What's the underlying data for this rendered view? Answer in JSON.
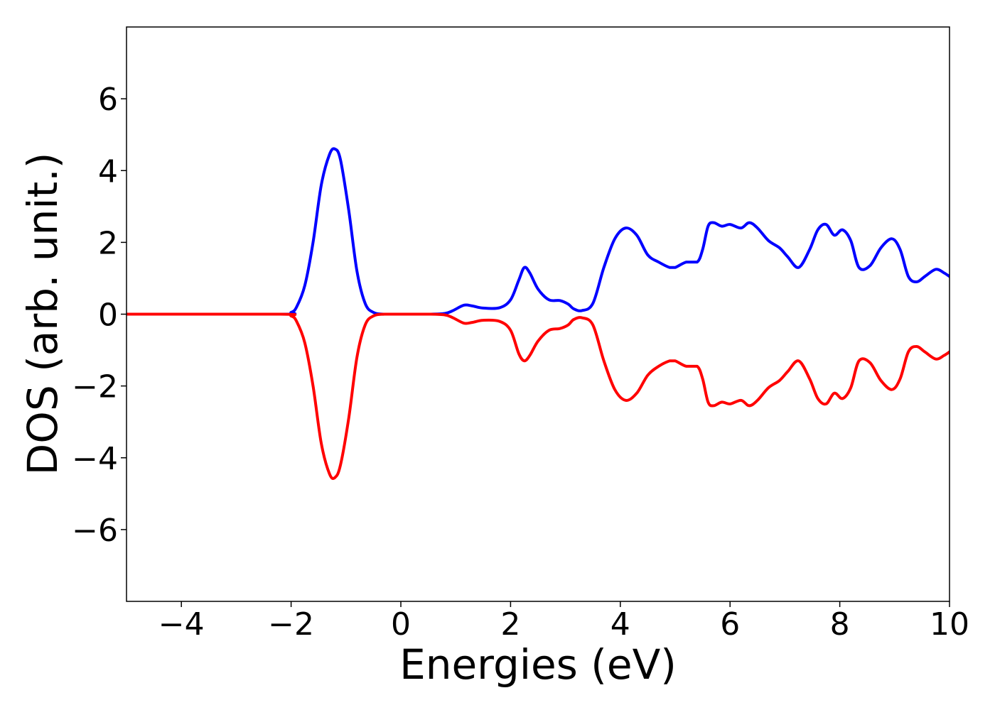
{
  "chart_data": {
    "type": "line",
    "title": "",
    "xlabel": "Energies (eV)",
    "ylabel": "DOS (arb. unit.)",
    "xlim": [
      -5,
      10
    ],
    "ylim": [
      -8,
      8
    ],
    "xticks": [
      -4,
      -2,
      0,
      2,
      4,
      6,
      8,
      10
    ],
    "xtick_labels": [
      "−4",
      "−2",
      "0",
      "2",
      "4",
      "6",
      "8",
      "10"
    ],
    "yticks": [
      -6,
      -4,
      -2,
      0,
      2,
      4,
      6
    ],
    "ytick_labels": [
      "−6",
      "−4",
      "−2",
      "0",
      "2",
      "4",
      "6"
    ],
    "grid": false,
    "legend": false,
    "series": [
      {
        "color": "#0000ff",
        "x": [
          -5,
          -2.2,
          -2.0,
          -1.9,
          -1.75,
          -1.6,
          -1.45,
          -1.3,
          -1.2,
          -1.1,
          -0.95,
          -0.8,
          -0.65,
          -0.5,
          -0.3,
          0.0,
          0.5,
          0.8,
          0.95,
          1.15,
          1.3,
          1.5,
          1.8,
          2.0,
          2.15,
          2.25,
          2.35,
          2.5,
          2.7,
          2.9,
          3.05,
          3.15,
          3.3,
          3.5,
          3.7,
          3.9,
          4.1,
          4.3,
          4.5,
          4.7,
          4.9,
          5.0,
          5.2,
          5.4,
          5.5,
          5.6,
          5.7,
          5.85,
          6.0,
          6.2,
          6.35,
          6.5,
          6.7,
          6.9,
          7.05,
          7.25,
          7.45,
          7.6,
          7.75,
          7.9,
          8.05,
          8.2,
          8.35,
          8.55,
          8.75,
          8.95,
          9.1,
          9.25,
          9.4,
          9.55,
          9.75,
          9.9,
          10.0
        ],
        "y": [
          0,
          0,
          0.05,
          0.2,
          0.8,
          2.0,
          3.6,
          4.45,
          4.6,
          4.3,
          2.9,
          1.2,
          0.3,
          0.05,
          0,
          0,
          0,
          0.02,
          0.1,
          0.25,
          0.23,
          0.17,
          0.18,
          0.4,
          0.95,
          1.3,
          1.15,
          0.7,
          0.4,
          0.38,
          0.28,
          0.15,
          0.1,
          0.3,
          1.3,
          2.1,
          2.4,
          2.2,
          1.65,
          1.45,
          1.3,
          1.3,
          1.45,
          1.45,
          1.8,
          2.45,
          2.55,
          2.45,
          2.5,
          2.4,
          2.55,
          2.4,
          2.05,
          1.85,
          1.6,
          1.3,
          1.8,
          2.35,
          2.5,
          2.2,
          2.35,
          2.05,
          1.3,
          1.35,
          1.85,
          2.1,
          1.8,
          1.05,
          0.9,
          1.05,
          1.25,
          1.15,
          1.05
        ]
      },
      {
        "color": "#ff0000",
        "x": [
          -5,
          -2.2,
          -2.0,
          -1.9,
          -1.75,
          -1.6,
          -1.45,
          -1.3,
          -1.2,
          -1.1,
          -0.95,
          -0.8,
          -0.65,
          -0.5,
          -0.3,
          0.0,
          0.5,
          0.8,
          0.95,
          1.15,
          1.3,
          1.5,
          1.8,
          2.0,
          2.15,
          2.25,
          2.35,
          2.5,
          2.7,
          2.9,
          3.05,
          3.15,
          3.3,
          3.5,
          3.7,
          3.9,
          4.1,
          4.3,
          4.5,
          4.7,
          4.9,
          5.0,
          5.2,
          5.4,
          5.5,
          5.6,
          5.7,
          5.85,
          6.0,
          6.2,
          6.35,
          6.5,
          6.7,
          6.9,
          7.05,
          7.25,
          7.45,
          7.6,
          7.75,
          7.9,
          8.05,
          8.2,
          8.35,
          8.55,
          8.75,
          8.95,
          9.1,
          9.25,
          9.4,
          9.55,
          9.75,
          9.9,
          10.0
        ],
        "y": [
          0,
          0,
          -0.05,
          -0.2,
          -0.8,
          -2.0,
          -3.6,
          -4.45,
          -4.55,
          -4.2,
          -2.9,
          -1.2,
          -0.3,
          -0.05,
          0,
          0,
          0,
          -0.02,
          -0.1,
          -0.25,
          -0.23,
          -0.17,
          -0.2,
          -0.45,
          -1.1,
          -1.3,
          -1.15,
          -0.75,
          -0.45,
          -0.4,
          -0.3,
          -0.15,
          -0.1,
          -0.3,
          -1.3,
          -2.1,
          -2.4,
          -2.2,
          -1.7,
          -1.45,
          -1.3,
          -1.3,
          -1.45,
          -1.45,
          -1.8,
          -2.45,
          -2.55,
          -2.45,
          -2.5,
          -2.4,
          -2.55,
          -2.4,
          -2.05,
          -1.85,
          -1.6,
          -1.3,
          -1.8,
          -2.35,
          -2.5,
          -2.2,
          -2.35,
          -2.05,
          -1.3,
          -1.35,
          -1.85,
          -2.1,
          -1.8,
          -1.05,
          -0.9,
          -1.05,
          -1.25,
          -1.15,
          -1.05
        ]
      }
    ]
  }
}
